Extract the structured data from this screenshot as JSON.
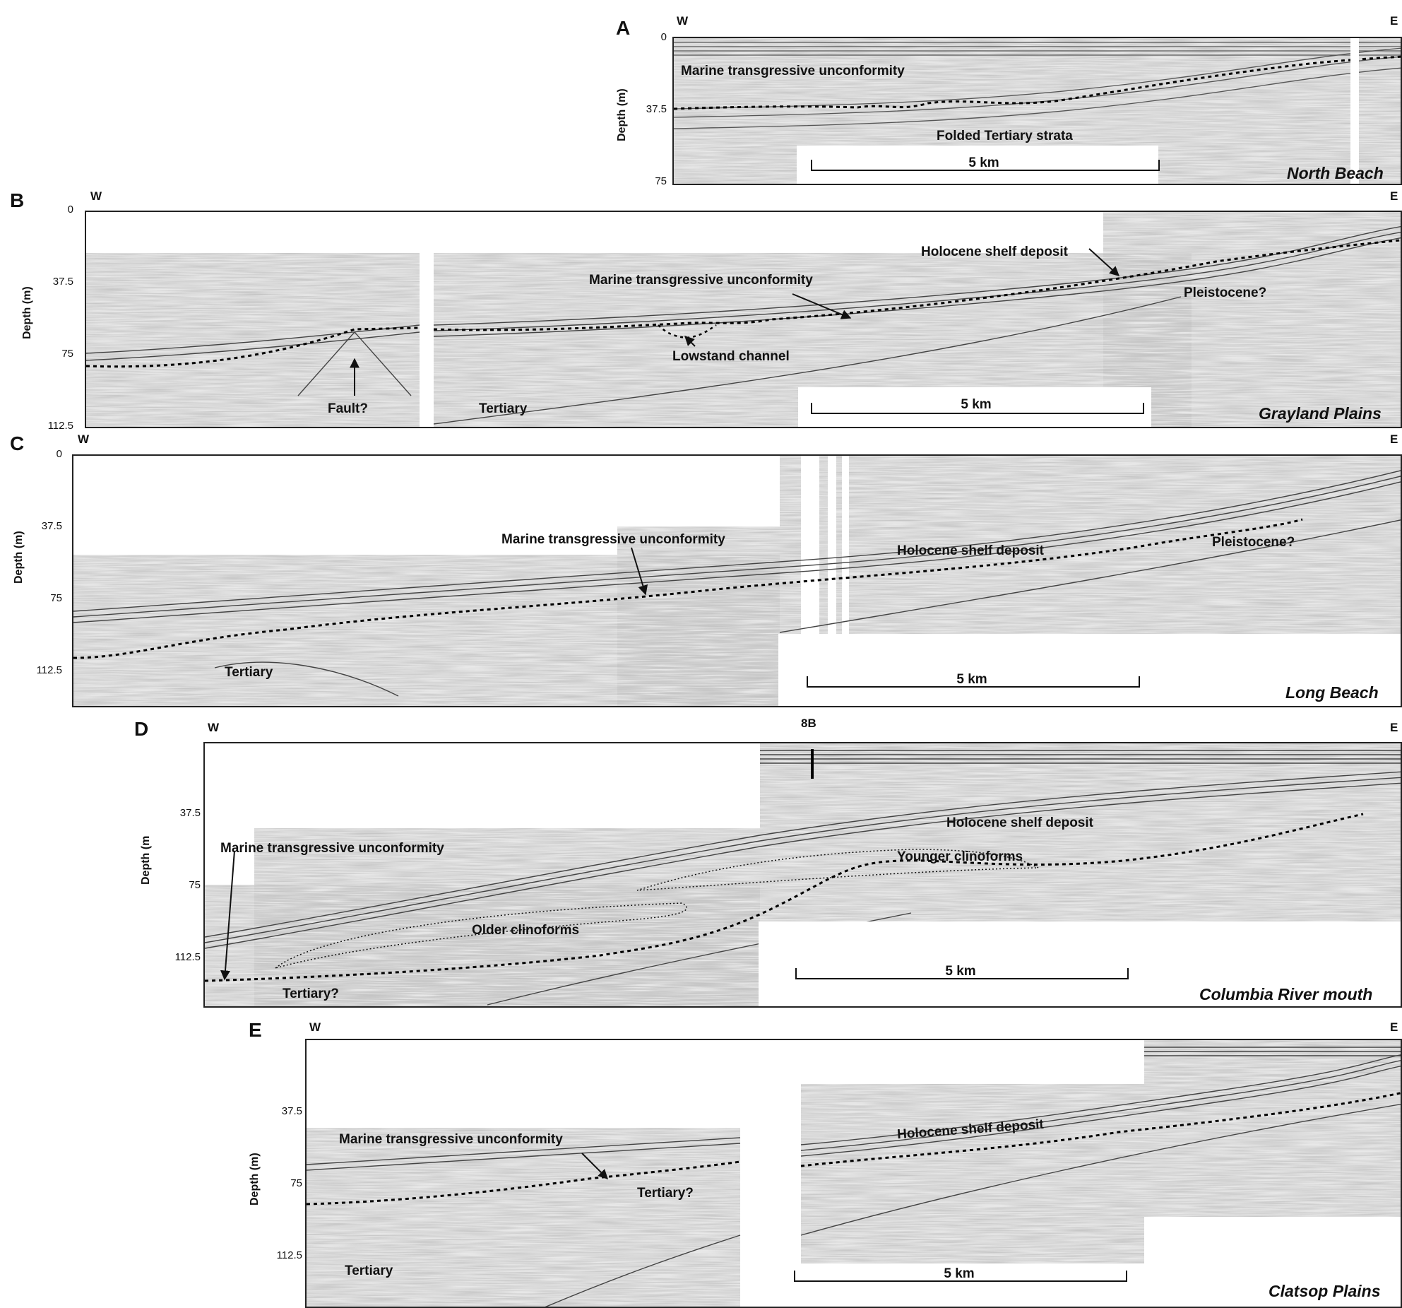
{
  "panels": {
    "a": {
      "letter": "A",
      "west": "W",
      "east": "E",
      "ylabel": "Depth (m)",
      "ticks": [
        "0",
        "37.5",
        "75"
      ],
      "labels": {
        "mtu": "Marine transgressive unconformity",
        "folded": "Folded Tertiary strata"
      },
      "scale": "5 km",
      "location": "North Beach"
    },
    "b": {
      "letter": "B",
      "west": "W",
      "east": "E",
      "ylabel": "Depth (m)",
      "ticks": [
        "0",
        "37.5",
        "75",
        "112.5"
      ],
      "labels": {
        "holocene": "Holocene shelf deposit",
        "mtu": "Marine transgressive unconformity",
        "pleistocene": "Pleistocene?",
        "lowstand": "Lowstand channel",
        "fault": "Fault?",
        "tertiary": "Tertiary"
      },
      "scale": "5 km",
      "location": "Grayland Plains"
    },
    "c": {
      "letter": "C",
      "west": "W",
      "east": "E",
      "ylabel": "Depth (m)",
      "ticks": [
        "0",
        "37.5",
        "75",
        "112.5"
      ],
      "labels": {
        "mtu": "Marine transgressive unconformity",
        "holocene": "Holocene shelf deposit",
        "pleistocene": "Pleistocene?",
        "tertiary": "Tertiary"
      },
      "scale": "5 km",
      "location": "Long Beach"
    },
    "d": {
      "letter": "D",
      "west": "W",
      "east": "E",
      "ylabel": "Depth (m",
      "ticks": [
        "37.5",
        "75",
        "112.5"
      ],
      "marker": "8B",
      "labels": {
        "holocene": "Holocene shelf deposit",
        "mtu": "Marine transgressive unconformity",
        "younger": "Younger clinoforms",
        "older": "Older clinoforms",
        "tertiary": "Tertiary?"
      },
      "scale": "5 km",
      "location": "Columbia River mouth"
    },
    "e": {
      "letter": "E",
      "west": "W",
      "east": "E",
      "ylabel": "Depth (m)",
      "ticks": [
        "37.5",
        "75",
        "112.5"
      ],
      "labels": {
        "mtu": "Marine transgressive unconformity",
        "holocene": "Holocene shelf deposit",
        "tertiaryq": "Tertiary?",
        "tertiary": "Tertiary"
      },
      "scale": "5 km",
      "location": "Clatsop Plains"
    }
  }
}
